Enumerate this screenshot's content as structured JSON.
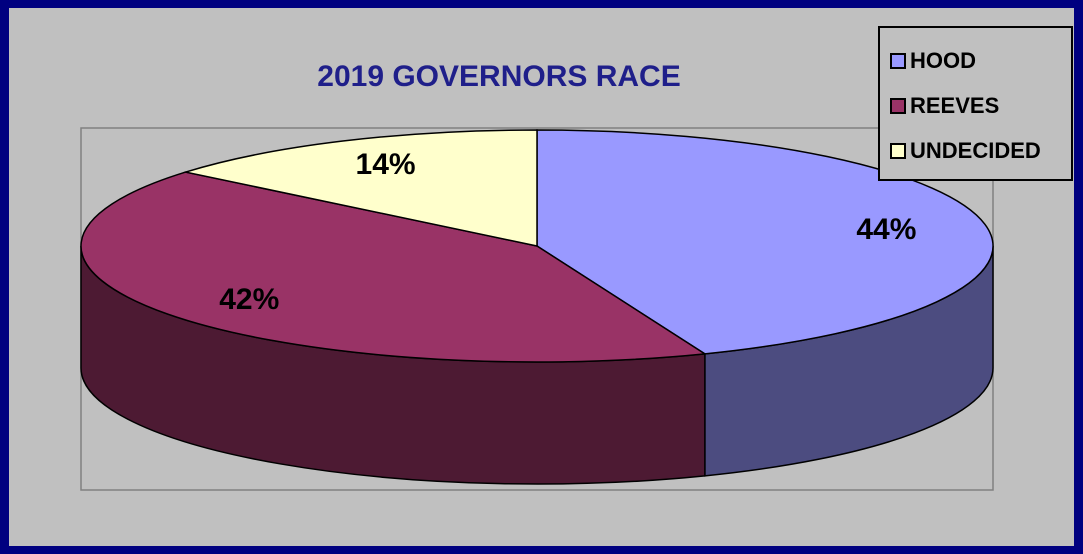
{
  "chart_data": {
    "type": "pie",
    "title": "2019 GOVERNORS RACE",
    "categories": [
      "HOOD",
      "REEVES",
      "UNDECIDED"
    ],
    "values": [
      44,
      42,
      14
    ],
    "labels": [
      "44%",
      "42%",
      "14%"
    ],
    "colors": [
      "#9999ff",
      "#993366",
      "#ffffcc"
    ],
    "side_colors": [
      "#4c4c80",
      "#4d1a33",
      "#80806a"
    ],
    "legend_position": "top-right",
    "three_d": true
  },
  "colors": {
    "frame": "#000080",
    "plot_background": "#c0c0c0",
    "title": "#1f1f8a"
  }
}
